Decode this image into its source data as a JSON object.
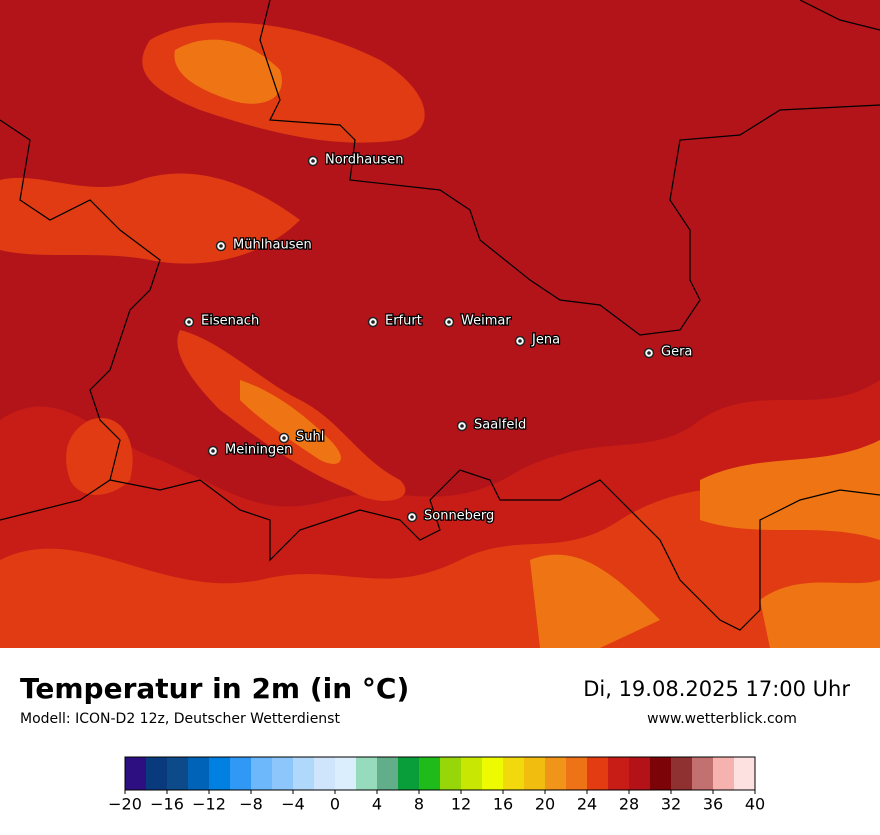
{
  "map": {
    "cities": [
      "Nordhausen",
      "Mühlhausen",
      "Eisenach",
      "Erfurt",
      "Weimar",
      "Jena",
      "Gera",
      "Saalfeld",
      "Suhl",
      "Meiningen",
      "Sonneberg"
    ]
  },
  "footer": {
    "title": "Temperatur in 2m (in °C)",
    "model": "Modell: ICON-D2 12z, Deutscher Wetterdienst",
    "datetime": "Di, 19.08.2025 17:00 Uhr",
    "website": "www.wetterblick.com"
  },
  "colorbar": {
    "lim": [
      -20,
      40
    ],
    "ticks": [
      {
        "value": -20,
        "label": "−20"
      },
      {
        "value": -16,
        "label": "−16"
      },
      {
        "value": -12,
        "label": "−12"
      },
      {
        "value": -8,
        "label": "−8"
      },
      {
        "value": -4,
        "label": "−4"
      },
      0,
      4,
      8,
      12,
      16,
      20,
      24,
      28,
      32,
      36,
      40
    ],
    "colors": [
      "#2e0f82",
      "#0a3a7e",
      "#0d4a8a",
      "#0063b8",
      "#0080e0",
      "#2f99f5",
      "#6db8fb",
      "#8cc6fa",
      "#b0d8fb",
      "#cfe5fb",
      "#dbeefd",
      "#96dbbc",
      "#62ad8a",
      "#0a9e3a",
      "#1fbb1a",
      "#97d70a",
      "#c8e804",
      "#eefa00",
      "#f1d90e",
      "#f1bd0f",
      "#f0951a",
      "#ee7216",
      "#e33c12",
      "#c81c16",
      "#b31218",
      "#7c0307",
      "#8e3130",
      "#c27070",
      "#f6b2ae",
      "#fde0e0"
    ]
  }
}
